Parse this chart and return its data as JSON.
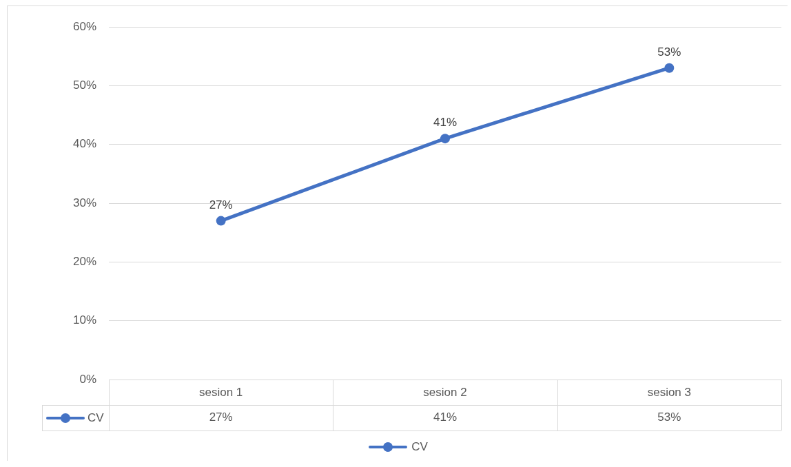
{
  "chart_data": {
    "type": "line",
    "categories": [
      "sesion 1",
      "sesion 2",
      "sesion 3"
    ],
    "series": [
      {
        "name": "CV",
        "color": "#4472c4",
        "values": [
          27,
          41,
          53
        ],
        "value_labels": [
          "27%",
          "41%",
          "53%"
        ]
      }
    ],
    "ylim": [
      0,
      60
    ],
    "yticks": [
      {
        "value": 0,
        "label": "0%"
      },
      {
        "value": 10,
        "label": "10%"
      },
      {
        "value": 20,
        "label": "20%"
      },
      {
        "value": 30,
        "label": "30%"
      },
      {
        "value": 40,
        "label": "40%"
      },
      {
        "value": 50,
        "label": "50%"
      },
      {
        "value": 60,
        "label": "60%"
      }
    ],
    "grid": "y",
    "legend": "bottom",
    "marker": "circle",
    "line_style": "solid"
  }
}
